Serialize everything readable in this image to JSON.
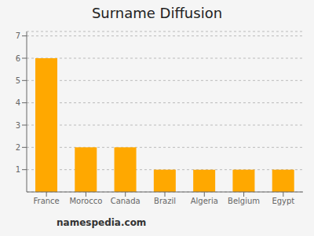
{
  "chart_data": {
    "type": "bar",
    "title": "Surname Diffusion",
    "categories": [
      "France",
      "Morocco",
      "Canada",
      "Brazil",
      "Algeria",
      "Belgium",
      "Egypt"
    ],
    "values": [
      6,
      2,
      2,
      1,
      1,
      1,
      1
    ],
    "color": "#FFA800",
    "ylim": [
      0,
      7.2
    ],
    "yticks": [
      1,
      2,
      3,
      4,
      5,
      6,
      7
    ],
    "grid": true,
    "annotations": [
      "namespedia.com"
    ]
  }
}
